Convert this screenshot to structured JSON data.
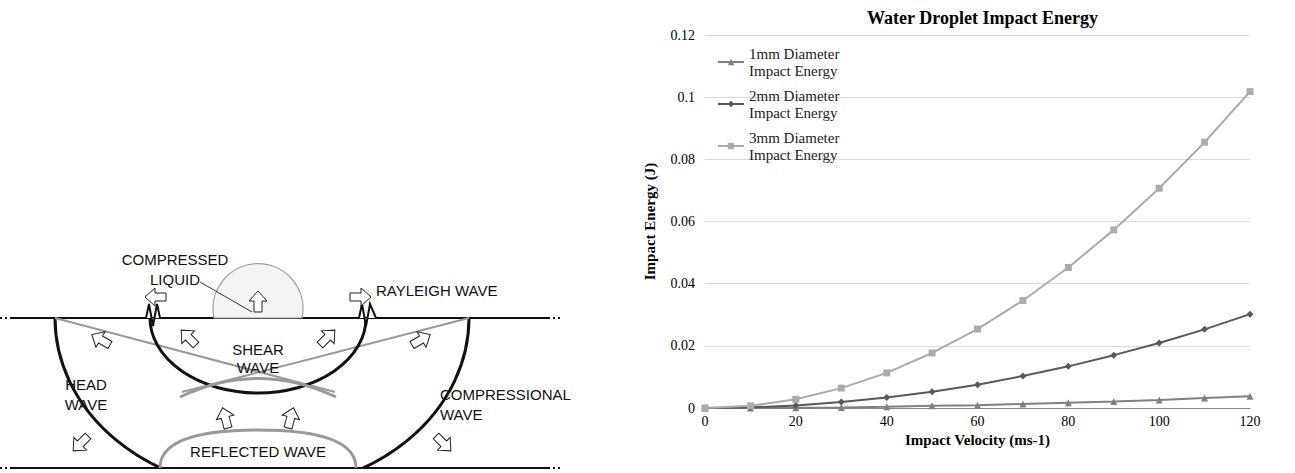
{
  "diagram": {
    "labels": {
      "compressed_liquid": "COMPRESSED LIQUID",
      "rayleigh_wave": "RAYLEIGH WAVE",
      "shear_wave": "SHEAR WAVE",
      "head_wave": "HEAD WAVE",
      "compressional_wave": "COMPRESSIONAL WAVE",
      "reflected_wave": "REFLECTED WAVE"
    }
  },
  "chart_data": {
    "type": "line",
    "title": "Water Droplet Impact Energy",
    "x_label": "Impact Velocity (ms-1)",
    "y_label": "Impact Energy (J)",
    "x": [
      0,
      10,
      20,
      30,
      40,
      50,
      60,
      70,
      80,
      90,
      100,
      110,
      120
    ],
    "xlim": [
      0,
      120
    ],
    "xticks": [
      0,
      20,
      40,
      60,
      80,
      100,
      120
    ],
    "ylim": [
      0,
      0.12
    ],
    "yticks": [
      0,
      0.02,
      0.04,
      0.06,
      0.08,
      0.1,
      0.12
    ],
    "grid": true,
    "legend": "upper left",
    "series": [
      {
        "name": "1mm Diameter Impact Energy",
        "color": "#808080",
        "marker": "triangle",
        "values": [
          0,
          0.0,
          0.0001,
          0.0002,
          0.0004,
          0.0007,
          0.0009,
          0.0013,
          0.0017,
          0.0021,
          0.0026,
          0.0032,
          0.0038
        ]
      },
      {
        "name": "2mm Diameter Impact Energy",
        "color": "#595959",
        "marker": "diamond",
        "values": [
          0,
          0.0002,
          0.0008,
          0.0019,
          0.0034,
          0.0052,
          0.0075,
          0.0103,
          0.0134,
          0.017,
          0.0209,
          0.0253,
          0.0302
        ]
      },
      {
        "name": "3mm Diameter Impact Energy",
        "color": "#ababab",
        "marker": "square",
        "values": [
          0,
          0.0007,
          0.0028,
          0.0064,
          0.0113,
          0.0177,
          0.0254,
          0.0346,
          0.0452,
          0.0573,
          0.0707,
          0.0855,
          0.1018
        ]
      }
    ]
  }
}
